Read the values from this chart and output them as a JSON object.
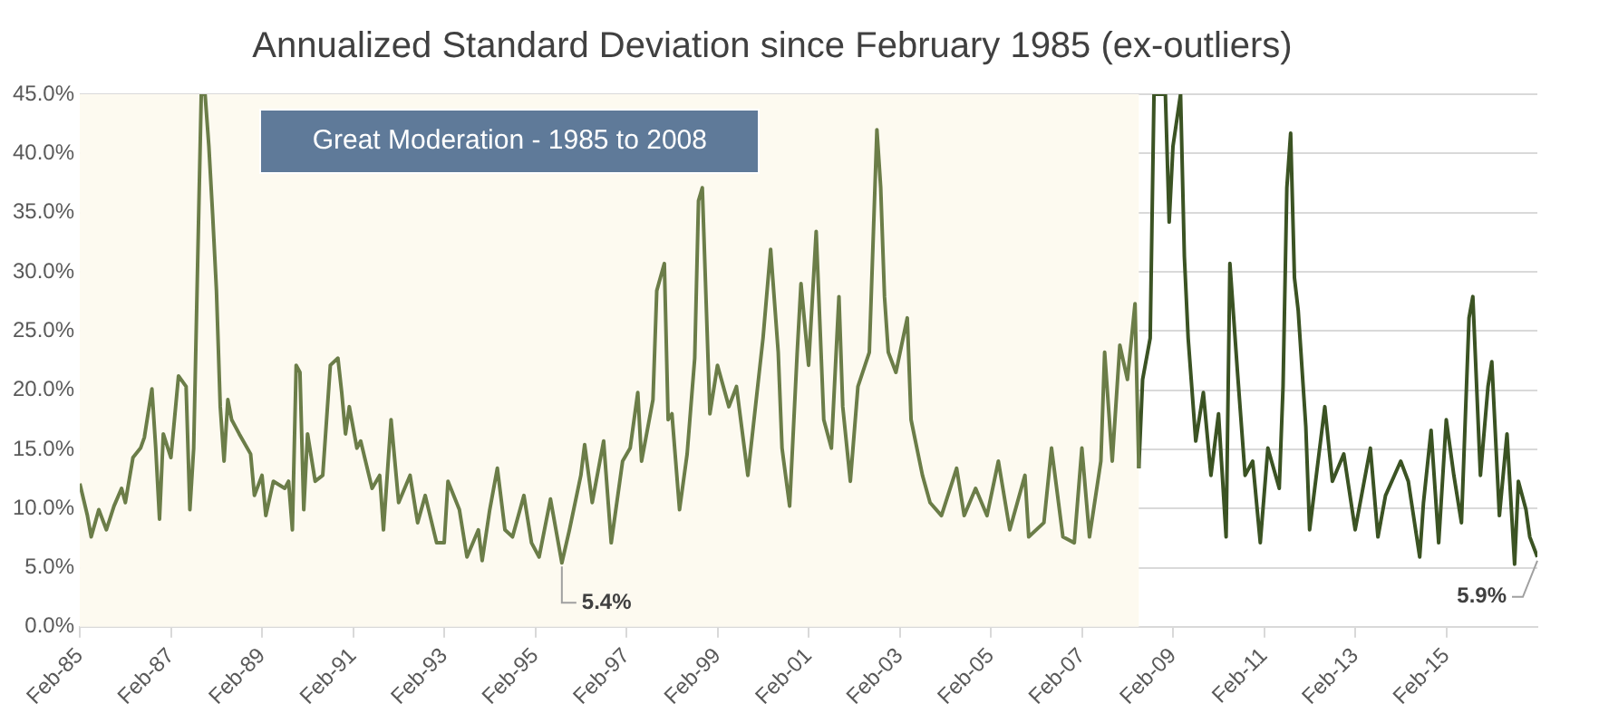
{
  "chart_data": {
    "type": "line",
    "title": "Annualized Standard Deviation since February 1985 (ex-outliers)",
    "xlim": [
      "1985-02",
      "2017-02"
    ],
    "xticks": [
      {
        "value": "1985-02",
        "label": "Feb-85"
      },
      {
        "value": "1987-02",
        "label": "Feb-87"
      },
      {
        "value": "1989-02",
        "label": "Feb-89"
      },
      {
        "value": "1991-02",
        "label": "Feb-91"
      },
      {
        "value": "1993-02",
        "label": "Feb-93"
      },
      {
        "value": "1995-02",
        "label": "Feb-95"
      },
      {
        "value": "1997-02",
        "label": "Feb-97"
      },
      {
        "value": "1999-02",
        "label": "Feb-99"
      },
      {
        "value": "2001-02",
        "label": "Feb-01"
      },
      {
        "value": "2003-02",
        "label": "Feb-03"
      },
      {
        "value": "2005-02",
        "label": "Feb-05"
      },
      {
        "value": "2007-02",
        "label": "Feb-07"
      },
      {
        "value": "2009-02",
        "label": "Feb-09"
      },
      {
        "value": "2011-02",
        "label": "Feb-11"
      },
      {
        "value": "2013-02",
        "label": "Feb-13"
      },
      {
        "value": "2015-02",
        "label": "Feb-15"
      }
    ],
    "ylim": [
      0,
      45
    ],
    "yticks": [
      {
        "value": 0,
        "label": "0.0%"
      },
      {
        "value": 5,
        "label": "5.0%"
      },
      {
        "value": 10,
        "label": "10.0%"
      },
      {
        "value": 15,
        "label": "15.0%"
      },
      {
        "value": 20,
        "label": "20.0%"
      },
      {
        "value": 25,
        "label": "25.0%"
      },
      {
        "value": 30,
        "label": "30.0%"
      },
      {
        "value": 35,
        "label": "35.0%"
      },
      {
        "value": 40,
        "label": "40.0%"
      },
      {
        "value": 45,
        "label": "45.0%"
      }
    ],
    "grid": "y",
    "legend": false,
    "marker": "none",
    "line_style": "solid",
    "series": [
      {
        "color": "#6b7d48",
        "x": [
          "1985-02",
          "1985-04",
          "1985-05",
          "1985-07",
          "1985-09",
          "1985-11",
          "1986-01",
          "1986-02",
          "1986-04",
          "1986-06",
          "1986-07",
          "1986-09",
          "1986-10",
          "1986-11",
          "1986-12",
          "1987-02",
          "1987-04",
          "1987-06",
          "1987-07",
          "1987-08",
          "1987-10",
          "1987-11",
          "1987-12",
          "1988-01",
          "1988-02",
          "1988-03",
          "1988-04",
          "1988-05",
          "1988-06",
          "1988-08",
          "1988-11",
          "1988-12",
          "1989-02",
          "1989-03",
          "1989-05",
          "1989-08",
          "1989-09",
          "1989-10",
          "1989-11",
          "1989-12",
          "1990-01",
          "1990-02",
          "1990-04",
          "1990-06",
          "1990-08",
          "1990-10",
          "1990-11",
          "1990-12",
          "1991-01",
          "1991-03",
          "1991-04",
          "1991-07",
          "1991-09",
          "1991-10",
          "1991-12",
          "1992-02",
          "1992-05",
          "1992-07",
          "1992-09",
          "1992-12",
          "1993-02",
          "1993-03",
          "1993-06",
          "1993-08",
          "1993-11",
          "1993-12",
          "1994-02",
          "1994-04",
          "1994-06",
          "1994-08",
          "1994-11",
          "1995-01",
          "1995-03",
          "1995-06",
          "1995-09",
          "1995-11",
          "1996-02",
          "1996-03",
          "1996-05",
          "1996-08",
          "1996-10",
          "1997-01",
          "1997-03",
          "1997-05",
          "1997-06",
          "1997-09",
          "1997-10",
          "1997-12",
          "1998-01",
          "1998-02",
          "1998-04",
          "1998-06",
          "1998-08",
          "1998-09",
          "1998-10",
          "1998-12",
          "1999-02",
          "1999-05",
          "1999-07",
          "1999-10",
          "2000-02",
          "2000-04",
          "2000-06",
          "2000-07",
          "2000-09",
          "2000-11",
          "2000-12",
          "2001-02",
          "2001-04",
          "2001-06",
          "2001-08",
          "2001-10",
          "2001-11",
          "2002-01",
          "2002-03",
          "2002-06",
          "2002-08",
          "2002-09",
          "2002-10",
          "2002-11",
          "2003-01",
          "2003-04",
          "2003-05",
          "2003-08",
          "2003-10",
          "2004-01",
          "2004-05",
          "2004-07",
          "2004-10",
          "2005-01",
          "2005-04",
          "2005-07",
          "2005-11",
          "2005-12",
          "2006-04",
          "2006-06",
          "2006-09",
          "2006-12",
          "2007-02",
          "2007-04",
          "2007-07",
          "2007-08",
          "2007-10",
          "2007-12",
          "2008-02",
          "2008-04",
          "2008-05"
        ],
        "values": [
          12.1,
          9.4,
          7.6,
          9.9,
          8.2,
          10.2,
          11.7,
          10.5,
          14.3,
          15.1,
          16,
          20.1,
          15.1,
          9.1,
          16.3,
          14.3,
          21.2,
          20.3,
          9.9,
          15.1,
          45,
          45,
          40.6,
          34.8,
          28.4,
          18.6,
          14,
          19.2,
          17.5,
          16.3,
          14.6,
          11.1,
          12.8,
          9.4,
          12.3,
          11.7,
          12.3,
          8.2,
          22.1,
          21.5,
          9.9,
          16.3,
          12.3,
          12.8,
          22.1,
          22.7,
          19.8,
          16.3,
          18.6,
          15.1,
          15.7,
          11.7,
          12.8,
          8.2,
          17.5,
          10.5,
          12.8,
          8.8,
          11.1,
          7.1,
          7.1,
          12.3,
          9.9,
          5.9,
          8.2,
          5.6,
          9.9,
          13.4,
          8.2,
          7.6,
          11.1,
          7.1,
          5.9,
          10.8,
          5.4,
          8.2,
          12.8,
          15.4,
          10.5,
          15.7,
          7.1,
          14,
          15.1,
          19.8,
          14,
          19.2,
          28.4,
          30.7,
          17.5,
          18,
          9.9,
          14.6,
          22.7,
          36,
          37.1,
          18,
          22.1,
          18.6,
          20.3,
          12.8,
          24.4,
          31.9,
          23.2,
          15.1,
          10.2,
          23.2,
          29,
          22.1,
          33.4,
          17.5,
          15.1,
          27.9,
          18.6,
          12.3,
          20.3,
          23.2,
          42,
          37.1,
          27.9,
          23.2,
          21.5,
          26.1,
          17.5,
          12.8,
          10.5,
          9.4,
          13.4,
          9.4,
          11.7,
          9.4,
          14,
          8.2,
          12.8,
          7.6,
          8.8,
          15.1,
          7.6,
          7.1,
          15.1,
          7.6,
          14,
          23.2,
          14,
          23.8,
          20.9,
          27.3,
          13.4
        ]
      },
      {
        "color": "#3b5323",
        "x": [
          "2008-05",
          "2008-06",
          "2008-08",
          "2008-09",
          "2008-10",
          "2008-12",
          "2009-01",
          "2009-02",
          "2009-04",
          "2009-05",
          "2009-06",
          "2009-08",
          "2009-10",
          "2009-12",
          "2010-02",
          "2010-04",
          "2010-05",
          "2010-07",
          "2010-09",
          "2010-11",
          "2011-01",
          "2011-03",
          "2011-06",
          "2011-07",
          "2011-08",
          "2011-09",
          "2011-10",
          "2011-11",
          "2012-01",
          "2012-02",
          "2012-04",
          "2012-06",
          "2012-08",
          "2012-11",
          "2013-02",
          "2013-06",
          "2013-08",
          "2013-10",
          "2014-02",
          "2014-04",
          "2014-07",
          "2014-08",
          "2014-10",
          "2014-12",
          "2015-02",
          "2015-04",
          "2015-06",
          "2015-08",
          "2015-09",
          "2015-11",
          "2016-01",
          "2016-02",
          "2016-04",
          "2016-06",
          "2016-08",
          "2016-09",
          "2016-11",
          "2016-12",
          "2017-02"
        ],
        "values": [
          13.4,
          20.9,
          24.4,
          45,
          45,
          45,
          34.2,
          40.6,
          45,
          31.3,
          24.4,
          15.7,
          19.8,
          12.8,
          18,
          7.6,
          30.7,
          21.5,
          12.8,
          14,
          7.1,
          15.1,
          11.7,
          20.3,
          37.1,
          41.7,
          29.5,
          26.7,
          16.9,
          8.2,
          13.4,
          18.6,
          12.3,
          14.6,
          8.2,
          15.1,
          7.6,
          11.1,
          14,
          12.3,
          5.9,
          10.5,
          16.6,
          7.1,
          17.5,
          12.8,
          8.8,
          26.1,
          27.9,
          12.8,
          20.3,
          22.4,
          9.4,
          16.3,
          5.3,
          12.3,
          9.9,
          7.6,
          5.9
        ]
      }
    ],
    "bands": [
      {
        "axis": "x",
        "from": "1985-02",
        "to": "2008-05",
        "label": "Great Moderation - 1985 to 2008",
        "color": "#fdfaf0"
      }
    ],
    "annotations": [
      {
        "text": "5.4%",
        "x": "1995-09",
        "y": 5.4
      },
      {
        "text": "5.9%",
        "x": "2017-02",
        "y": 5.9
      }
    ]
  }
}
